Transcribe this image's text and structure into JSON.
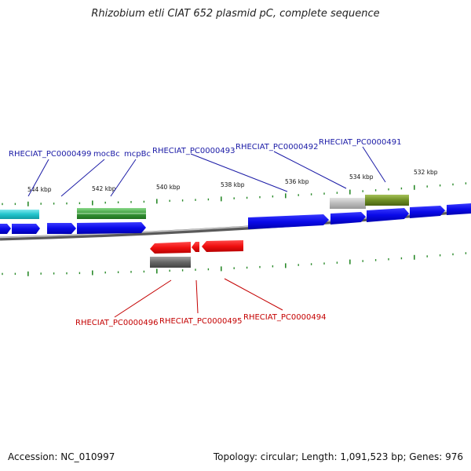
{
  "title": "Rhizobium etli CIAT 652 plasmid pC, complete sequence",
  "footer": {
    "accession": "Accession: NC_010997",
    "summary": "Topology: circular; Length: 1,091,523 bp; Genes: 976"
  },
  "kbp_labels": [
    "544 kbp",
    "542 kbp",
    "540 kbp",
    "538 kbp",
    "536 kbp",
    "534 kbp",
    "532 kbp"
  ],
  "gene_labels_top": [
    "RHECIAT_PC0000499",
    "mocBc",
    "mcpBc",
    "RHECIAT_PC0000493",
    "RHECIAT_PC0000492",
    "RHECIAT_PC0000491"
  ],
  "gene_labels_bottom": [
    "RHECIAT_PC0000496",
    "RHECIAT_PC0000495",
    "RHECIAT_PC0000494"
  ],
  "colors": {
    "forward_gene": "#1010e0",
    "reverse_gene": "#ee1111",
    "backbone": "#888888",
    "tick": "#2a8a2a",
    "label_blue": "#1a1aa6",
    "label_red": "#c40000",
    "feature_cyan": "#22c4cc",
    "feature_green": "#3a9a3a",
    "feature_olive": "#6e8e24",
    "feature_grey": "#bbbbbb",
    "feature_dark_grey": "#666666"
  }
}
